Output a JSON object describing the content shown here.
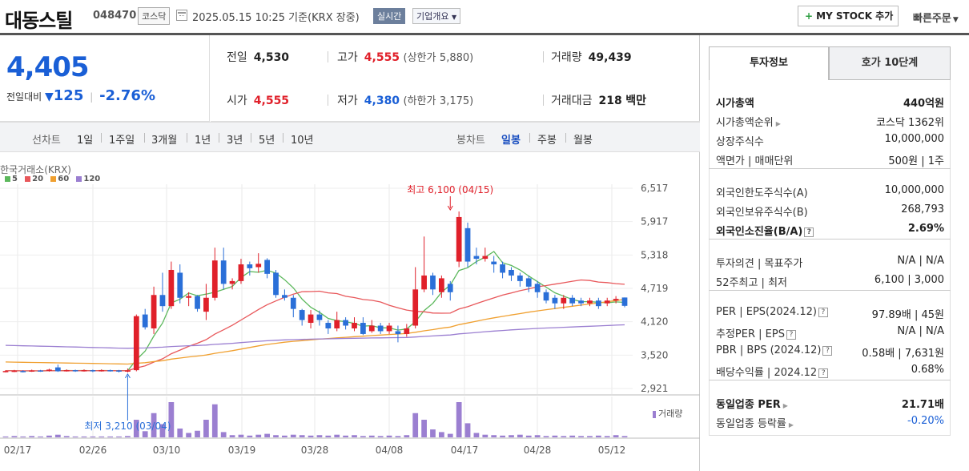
{
  "header": {
    "name": "대동스틸",
    "code": "048470",
    "market": "코스닥",
    "datetime": "2025.05.15 10:25 기준(KRX 장중)",
    "realtime": "실시간",
    "overview": "기업개요",
    "mystock": "MY STOCK 추가",
    "quick_order": "빠른주문"
  },
  "price": {
    "current": "4,405",
    "change_label": "전일대비",
    "change_abs": "125",
    "change_pct": "-2.76%"
  },
  "info": {
    "prev_close_label": "전일",
    "prev_close": "4,530",
    "high_label": "고가",
    "high": "4,555",
    "upper_limit_label": "(상한가",
    "upper_limit": "5,880)",
    "volume_label": "거래량",
    "volume": "49,439",
    "open_label": "시가",
    "open": "4,555",
    "low_label": "저가",
    "low": "4,380",
    "lower_limit_label": "(하한가",
    "lower_limit": "3,175)",
    "amount_label": "거래대금",
    "amount": "218",
    "amount_unit": "백만"
  },
  "period": {
    "line_label": "선차트",
    "line_items": [
      "1일",
      "1주일",
      "3개월",
      "1년",
      "3년",
      "5년",
      "10년"
    ],
    "candle_label": "봉차트",
    "candle_items": [
      "일봉",
      "주봉",
      "월봉"
    ],
    "active_candle": "일봉"
  },
  "chart_labels": {
    "exchange": "한국거래소(KRX)",
    "ma": [
      "5",
      "20",
      "60",
      "120"
    ],
    "ma_colors": [
      "#5cb85c",
      "#e8575a",
      "#f0a030",
      "#9b7fd1"
    ],
    "high_note": "최고 6,100 (04/15)",
    "low_note": "최저 3,210 (03/04)",
    "volume_legend": "거래량"
  },
  "chart_data": {
    "type": "candlestick",
    "y_ticks": [
      "6,517",
      "5,917",
      "5,318",
      "4,719",
      "4,120",
      "3,520",
      "2,921"
    ],
    "x_ticks": [
      "02/17",
      "02/26",
      "03/10",
      "03/19",
      "03/28",
      "04/08",
      "04/17",
      "04/28",
      "05/12"
    ],
    "ylim": [
      2921,
      6517
    ],
    "candles": [
      {
        "o": 3225,
        "c": 3235,
        "h": 3250,
        "l": 3210
      },
      {
        "o": 3230,
        "c": 3240,
        "h": 3255,
        "l": 3215
      },
      {
        "o": 3235,
        "c": 3225,
        "h": 3250,
        "l": 3210
      },
      {
        "o": 3230,
        "c": 3245,
        "h": 3260,
        "l": 3220
      },
      {
        "o": 3245,
        "c": 3235,
        "h": 3255,
        "l": 3220
      },
      {
        "o": 3240,
        "c": 3260,
        "h": 3275,
        "l": 3225
      },
      {
        "o": 3300,
        "c": 3230,
        "h": 3350,
        "l": 3220
      },
      {
        "o": 3235,
        "c": 3250,
        "h": 3265,
        "l": 3225
      },
      {
        "o": 3250,
        "c": 3235,
        "h": 3260,
        "l": 3220
      },
      {
        "o": 3240,
        "c": 3250,
        "h": 3265,
        "l": 3225
      },
      {
        "o": 3250,
        "c": 3235,
        "h": 3260,
        "l": 3215
      },
      {
        "o": 3240,
        "c": 3250,
        "h": 3265,
        "l": 3225
      },
      {
        "o": 3250,
        "c": 3240,
        "h": 3260,
        "l": 3225
      },
      {
        "o": 3245,
        "c": 3230,
        "h": 3255,
        "l": 3210
      },
      {
        "o": 3230,
        "c": 3245,
        "h": 3280,
        "l": 3210
      },
      {
        "o": 3250,
        "c": 4220,
        "h": 4250,
        "l": 3230
      },
      {
        "o": 4250,
        "c": 4020,
        "h": 4350,
        "l": 3980
      },
      {
        "o": 4000,
        "c": 4600,
        "h": 4750,
        "l": 3900
      },
      {
        "o": 4600,
        "c": 4400,
        "h": 5000,
        "l": 4300
      },
      {
        "o": 4400,
        "c": 5050,
        "h": 5200,
        "l": 4350
      },
      {
        "o": 5000,
        "c": 4550,
        "h": 5150,
        "l": 4450
      },
      {
        "o": 4550,
        "c": 4580,
        "h": 4650,
        "l": 4400
      },
      {
        "o": 4580,
        "c": 4350,
        "h": 4600,
        "l": 4300
      },
      {
        "o": 4300,
        "c": 4550,
        "h": 4800,
        "l": 4150
      },
      {
        "o": 4550,
        "c": 5220,
        "h": 5450,
        "l": 4500
      },
      {
        "o": 5220,
        "c": 4800,
        "h": 5450,
        "l": 4700
      },
      {
        "o": 4800,
        "c": 4850,
        "h": 4900,
        "l": 4700
      },
      {
        "o": 4850,
        "c": 5150,
        "h": 5250,
        "l": 4800
      },
      {
        "o": 5150,
        "c": 5080,
        "h": 5200,
        "l": 4950
      },
      {
        "o": 5100,
        "c": 5160,
        "h": 5350,
        "l": 5000
      },
      {
        "o": 5230,
        "c": 4980,
        "h": 5260,
        "l": 4900
      },
      {
        "o": 5000,
        "c": 4600,
        "h": 5050,
        "l": 4550
      },
      {
        "o": 4600,
        "c": 4550,
        "h": 4700,
        "l": 4500
      },
      {
        "o": 4550,
        "c": 4350,
        "h": 4600,
        "l": 4200
      },
      {
        "o": 4330,
        "c": 4150,
        "h": 4350,
        "l": 4050
      },
      {
        "o": 4100,
        "c": 4250,
        "h": 4330,
        "l": 4000
      },
      {
        "o": 4250,
        "c": 4150,
        "h": 4320,
        "l": 4050
      },
      {
        "o": 4100,
        "c": 4000,
        "h": 4150,
        "l": 3900
      },
      {
        "o": 4000,
        "c": 4150,
        "h": 4300,
        "l": 3950
      },
      {
        "o": 4150,
        "c": 4050,
        "h": 4200,
        "l": 3980
      },
      {
        "o": 4000,
        "c": 4100,
        "h": 4200,
        "l": 3950
      },
      {
        "o": 4100,
        "c": 3900,
        "h": 4200,
        "l": 3880
      },
      {
        "o": 3950,
        "c": 4050,
        "h": 4150,
        "l": 3920
      },
      {
        "o": 4050,
        "c": 3950,
        "h": 4100,
        "l": 3900
      },
      {
        "o": 3950,
        "c": 4050,
        "h": 4100,
        "l": 3900
      },
      {
        "o": 3950,
        "c": 3900,
        "h": 4050,
        "l": 3750
      },
      {
        "o": 3900,
        "c": 4000,
        "h": 4080,
        "l": 3850
      },
      {
        "o": 4050,
        "c": 4700,
        "h": 5100,
        "l": 4000
      },
      {
        "o": 4700,
        "c": 4950,
        "h": 5650,
        "l": 4650
      },
      {
        "o": 4950,
        "c": 4700,
        "h": 5000,
        "l": 4600
      },
      {
        "o": 4650,
        "c": 4900,
        "h": 4950,
        "l": 4550
      },
      {
        "o": 4800,
        "c": 4650,
        "h": 4850,
        "l": 4500
      },
      {
        "o": 5200,
        "c": 6000,
        "h": 6100,
        "l": 5100
      },
      {
        "o": 5800,
        "c": 5200,
        "h": 5900,
        "l": 5100
      },
      {
        "o": 5300,
        "c": 5250,
        "h": 5450,
        "l": 5150
      },
      {
        "o": 5250,
        "c": 5300,
        "h": 5450,
        "l": 5200
      },
      {
        "o": 5200,
        "c": 5150,
        "h": 5300,
        "l": 5000
      },
      {
        "o": 5150,
        "c": 5000,
        "h": 5200,
        "l": 4900
      },
      {
        "o": 5050,
        "c": 4950,
        "h": 5100,
        "l": 4850
      },
      {
        "o": 4950,
        "c": 4850,
        "h": 5000,
        "l": 4750
      },
      {
        "o": 4900,
        "c": 4750,
        "h": 4950,
        "l": 4650
      },
      {
        "o": 4800,
        "c": 4650,
        "h": 4850,
        "l": 4550
      },
      {
        "o": 4650,
        "c": 4500,
        "h": 4700,
        "l": 4450
      },
      {
        "o": 4550,
        "c": 4450,
        "h": 4600,
        "l": 4350
      },
      {
        "o": 4450,
        "c": 4550,
        "h": 4600,
        "l": 4350
      },
      {
        "o": 4550,
        "c": 4450,
        "h": 4600,
        "l": 4400
      },
      {
        "o": 4500,
        "c": 4450,
        "h": 4550,
        "l": 4400
      },
      {
        "o": 4450,
        "c": 4500,
        "h": 4550,
        "l": 4400
      },
      {
        "o": 4500,
        "c": 4400,
        "h": 4550,
        "l": 4350
      },
      {
        "o": 4450,
        "c": 4500,
        "h": 4550,
        "l": 4400
      },
      {
        "o": 4500,
        "c": 4530,
        "h": 4580,
        "l": 4450
      },
      {
        "o": 4555,
        "c": 4405,
        "h": 4555,
        "l": 4380
      }
    ],
    "volume": [
      2,
      3,
      2,
      3,
      2,
      4,
      6,
      3,
      2,
      2,
      2,
      2,
      2,
      2,
      3,
      40,
      14,
      55,
      30,
      80,
      20,
      10,
      15,
      40,
      75,
      12,
      5,
      6,
      4,
      6,
      8,
      5,
      4,
      6,
      5,
      4,
      5,
      4,
      6,
      4,
      5,
      3,
      4,
      3,
      4,
      3,
      5,
      55,
      40,
      18,
      12,
      8,
      80,
      32,
      10,
      6,
      5,
      4,
      5,
      6,
      4,
      5,
      3,
      4,
      3,
      4,
      3,
      3,
      4,
      3,
      5,
      3
    ]
  },
  "invest_info": {
    "tab_active": "투자정보",
    "tab_other": "호가 10단계",
    "rows": [
      {
        "k": "시가총액",
        "v": "440억원",
        "bold": true
      },
      {
        "k": "시가총액순위",
        "v": "코스닥 1362위",
        "arrow": true
      },
      {
        "k": "상장주식수",
        "v": "10,000,000"
      },
      {
        "k": "액면가 | 매매단위",
        "v": "500원 | 1주"
      },
      {
        "k": "외국인한도주식수(A)",
        "v": "10,000,000"
      },
      {
        "k": "외국인보유주식수(B)",
        "v": "268,793"
      },
      {
        "k": "외국인소진율(B/A)",
        "v": "2.69%",
        "bold": true,
        "q": true
      },
      {
        "k": "투자의견 | 목표주가",
        "v": "N/A | N/A"
      },
      {
        "k": "52주최고 | 최저",
        "v": "6,100 | 3,000"
      },
      {
        "k": "PER | EPS(2024.12)",
        "v": "97.89배 | 45원",
        "q": true
      },
      {
        "k": "추정PER | EPS",
        "v": "N/A | N/A",
        "q": true
      },
      {
        "k": "PBR | BPS (2024.12)",
        "v": "0.58배 | 7,631원",
        "q": true
      },
      {
        "k": "배당수익률 | 2024.12",
        "v": "0.68%",
        "q": true
      },
      {
        "k": "동일업종 PER",
        "v": "21.71배",
        "bold": true,
        "arrow": true
      },
      {
        "k": "동일업종 등락률",
        "v": "-0.20%",
        "arrow": true,
        "blue": true
      }
    ]
  }
}
